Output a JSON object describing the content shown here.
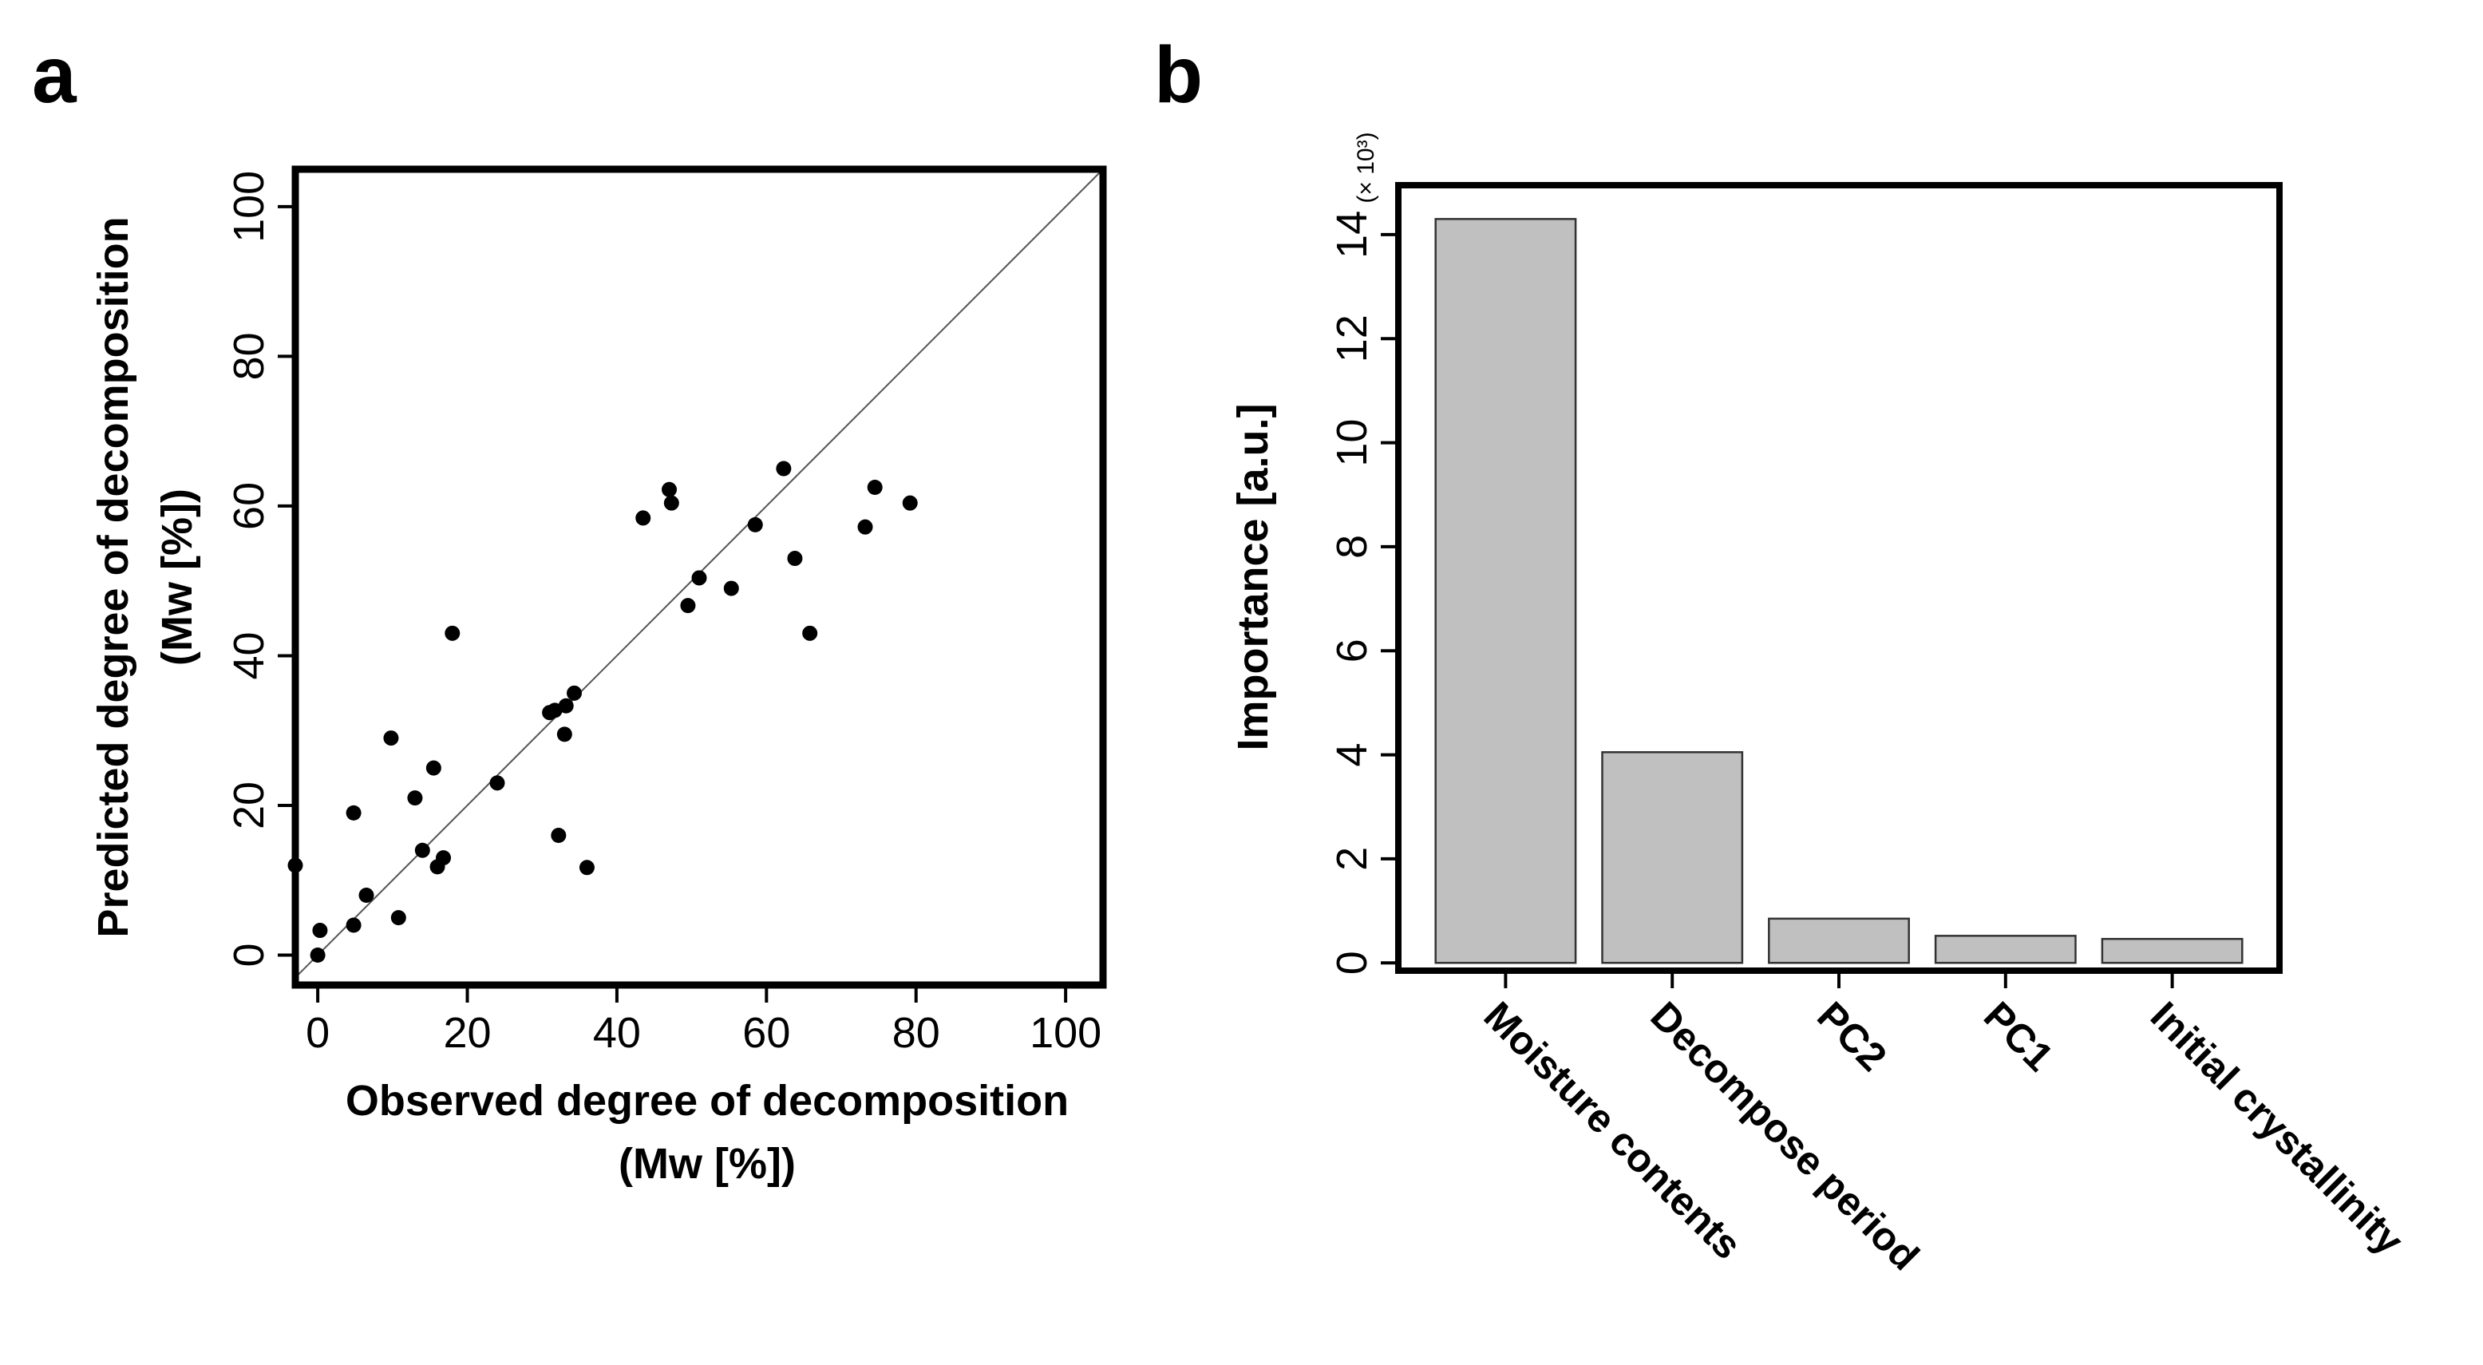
{
  "chart_data": [
    {
      "panel": "a",
      "type": "scatter",
      "xlabel": "Observed degree of decomposition",
      "xlabel_unit": "(Mw [%])",
      "ylabel": "Predicted degree of decomposition",
      "ylabel_unit": "(Mw [%])",
      "xlim": [
        -3,
        105
      ],
      "ylim": [
        -4,
        105
      ],
      "xticks": [
        "0",
        "20",
        "40",
        "60",
        "80",
        "100"
      ],
      "yticks": [
        "0",
        "20",
        "40",
        "60",
        "80",
        "100"
      ],
      "reference_line": "y = x",
      "points": [
        {
          "x": -3,
          "y": 12
        },
        {
          "x": 0,
          "y": 0
        },
        {
          "x": 0.3,
          "y": 3.3
        },
        {
          "x": 4.8,
          "y": 4
        },
        {
          "x": 4.8,
          "y": 19
        },
        {
          "x": 6.5,
          "y": 8
        },
        {
          "x": 9.8,
          "y": 29
        },
        {
          "x": 10.8,
          "y": 5
        },
        {
          "x": 13,
          "y": 21
        },
        {
          "x": 14,
          "y": 14
        },
        {
          "x": 15.5,
          "y": 25
        },
        {
          "x": 16,
          "y": 11.8
        },
        {
          "x": 16.8,
          "y": 13
        },
        {
          "x": 18,
          "y": 43
        },
        {
          "x": 24,
          "y": 23
        },
        {
          "x": 31,
          "y": 32.4
        },
        {
          "x": 31.7,
          "y": 32.7
        },
        {
          "x": 32.2,
          "y": 16
        },
        {
          "x": 33,
          "y": 29.5
        },
        {
          "x": 33.2,
          "y": 33.3
        },
        {
          "x": 34.3,
          "y": 35
        },
        {
          "x": 36,
          "y": 11.7
        },
        {
          "x": 43.5,
          "y": 58.4
        },
        {
          "x": 47,
          "y": 62.2
        },
        {
          "x": 47.3,
          "y": 60.4
        },
        {
          "x": 49.5,
          "y": 46.7
        },
        {
          "x": 51,
          "y": 50.4
        },
        {
          "x": 55.3,
          "y": 49
        },
        {
          "x": 58.5,
          "y": 57.5
        },
        {
          "x": 62.3,
          "y": 65
        },
        {
          "x": 63.8,
          "y": 53
        },
        {
          "x": 65.8,
          "y": 43
        },
        {
          "x": 73.2,
          "y": 57.2
        },
        {
          "x": 74.5,
          "y": 62.5
        },
        {
          "x": 79.2,
          "y": 60.4
        }
      ]
    },
    {
      "panel": "b",
      "type": "bar",
      "ylabel": "Importance [a.u.]",
      "multiplier": "(× 10³)",
      "ylim": [
        -0.15,
        14.95
      ],
      "yticks": [
        "0",
        "2",
        "4",
        "6",
        "8",
        "10",
        "12",
        "14"
      ],
      "categories": [
        "Moisture contents",
        "Decompose period",
        "PC2",
        "PC1",
        "Initial crystallinity"
      ],
      "values": [
        14.3,
        4.05,
        0.85,
        0.52,
        0.46
      ],
      "bar_color": "#c0c0c0"
    }
  ],
  "panel_letters": [
    "a",
    "b"
  ]
}
